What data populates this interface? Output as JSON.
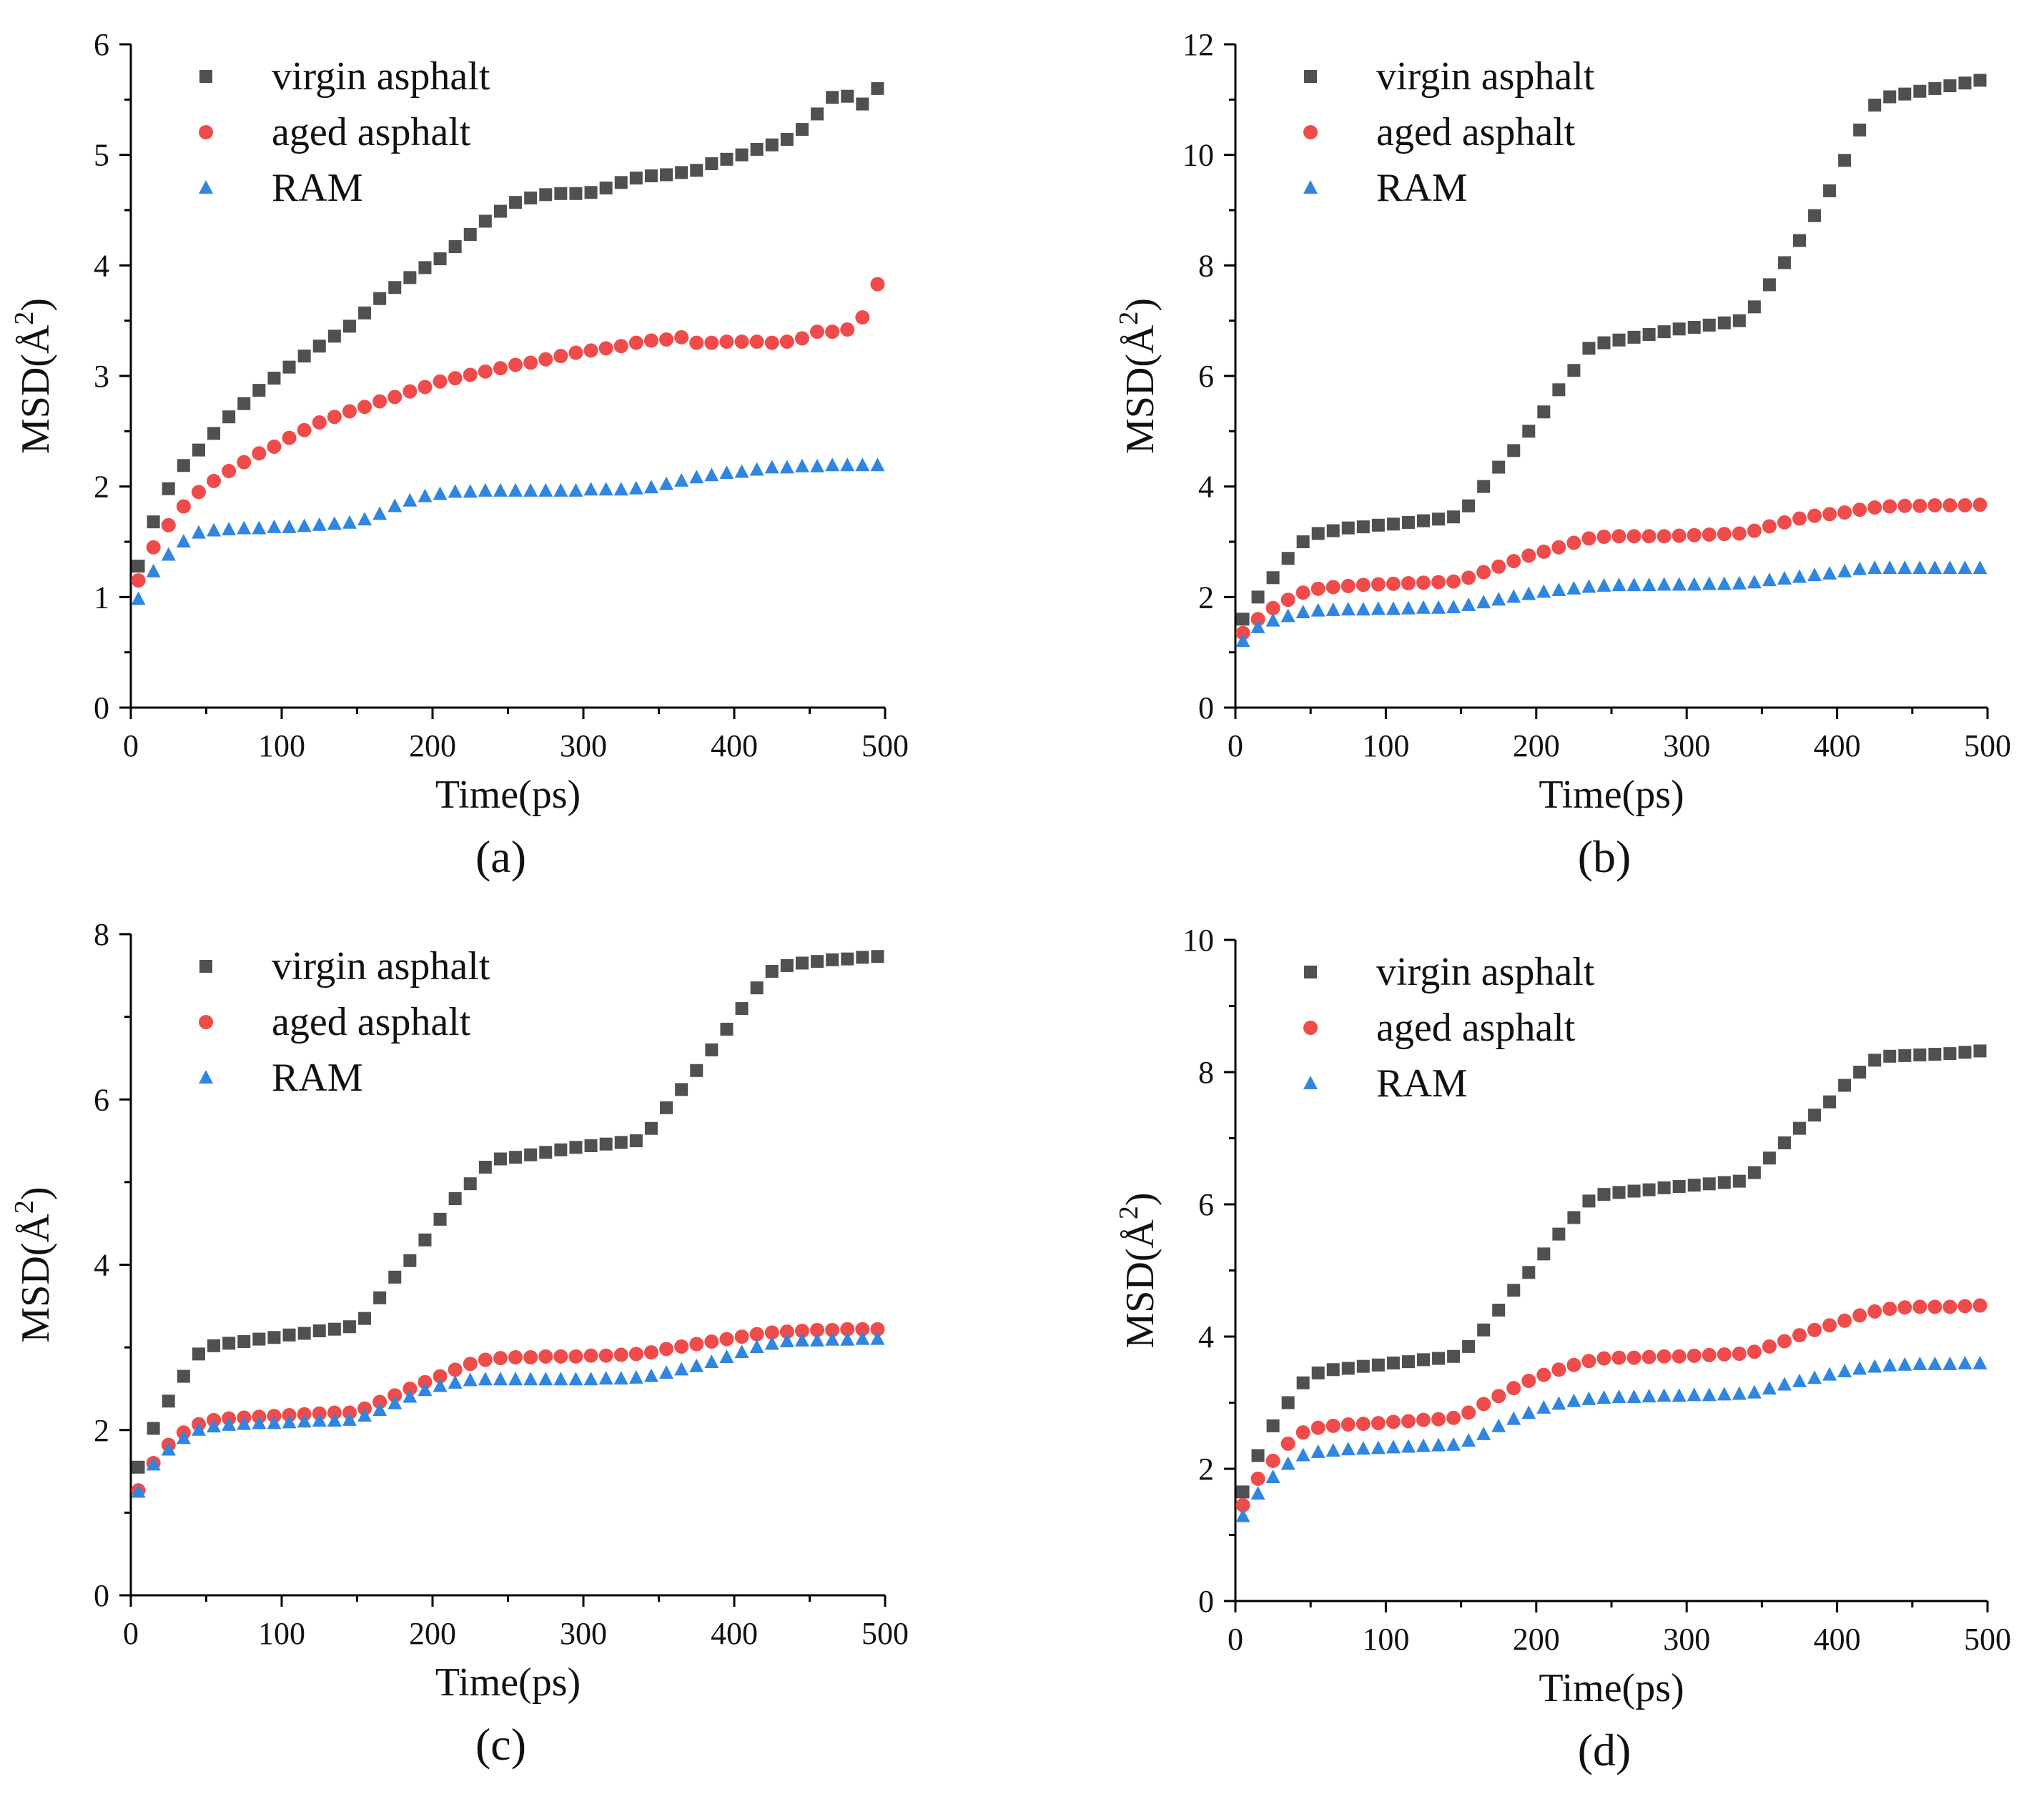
{
  "figure": {
    "series_legend": [
      "virgin asphalt",
      "aged asphalt",
      "RAM"
    ],
    "series_colors": {
      "virgin": "#505050",
      "aged": "#ef4b4b",
      "ram": "#2f86e0"
    }
  },
  "chart_data": [
    {
      "type": "scatter",
      "panel_label": "(a)",
      "xlabel": "Time(ps)",
      "ylabel": "MSD(Å²)",
      "ylabel_base": "MSD(Å",
      "ylabel_sup": "2",
      "ylabel_close": ")",
      "xlim": [
        0,
        500
      ],
      "ylim": [
        0,
        6
      ],
      "xticks": [
        0,
        100,
        200,
        300,
        400,
        500
      ],
      "yticks": [
        0,
        1,
        2,
        3,
        4,
        5,
        6
      ],
      "x": [
        5,
        15,
        25,
        35,
        45,
        55,
        65,
        75,
        85,
        95,
        105,
        115,
        125,
        135,
        145,
        155,
        165,
        175,
        185,
        195,
        205,
        215,
        225,
        235,
        245,
        255,
        265,
        275,
        285,
        295,
        305,
        315,
        325,
        335,
        345,
        355,
        365,
        375,
        385,
        395,
        405,
        415,
        425,
        435,
        445,
        455,
        465,
        475,
        485,
        495
      ],
      "series": [
        {
          "name": "virgin asphalt",
          "marker": "square",
          "values": [
            1.28,
            1.68,
            1.98,
            2.19,
            2.33,
            2.48,
            2.63,
            2.75,
            2.87,
            2.98,
            3.08,
            3.18,
            3.27,
            3.36,
            3.45,
            3.57,
            3.7,
            3.8,
            3.89,
            3.98,
            4.06,
            4.17,
            4.28,
            4.4,
            4.49,
            4.57,
            4.61,
            4.64,
            4.65,
            4.65,
            4.66,
            4.7,
            4.75,
            4.79,
            4.81,
            4.82,
            4.84,
            4.86,
            4.92,
            4.96,
            5.0,
            5.05,
            5.09,
            5.14,
            5.23,
            5.37,
            5.52,
            5.53,
            5.46,
            5.6
          ]
        },
        {
          "name": "aged asphalt",
          "marker": "circle",
          "values": [
            1.15,
            1.45,
            1.65,
            1.82,
            1.95,
            2.05,
            2.14,
            2.22,
            2.3,
            2.36,
            2.44,
            2.51,
            2.58,
            2.63,
            2.68,
            2.72,
            2.77,
            2.81,
            2.86,
            2.9,
            2.95,
            2.98,
            3.01,
            3.04,
            3.07,
            3.1,
            3.12,
            3.15,
            3.18,
            3.21,
            3.23,
            3.25,
            3.27,
            3.3,
            3.32,
            3.33,
            3.35,
            3.3,
            3.3,
            3.31,
            3.31,
            3.31,
            3.3,
            3.31,
            3.34,
            3.4,
            3.4,
            3.42,
            3.53,
            3.83
          ]
        },
        {
          "name": "RAM",
          "marker": "triangle",
          "values": [
            0.98,
            1.23,
            1.38,
            1.5,
            1.58,
            1.6,
            1.61,
            1.62,
            1.62,
            1.63,
            1.63,
            1.64,
            1.65,
            1.66,
            1.67,
            1.7,
            1.75,
            1.82,
            1.87,
            1.91,
            1.93,
            1.95,
            1.95,
            1.96,
            1.96,
            1.96,
            1.96,
            1.96,
            1.96,
            1.96,
            1.97,
            1.97,
            1.97,
            1.98,
            1.99,
            2.02,
            2.05,
            2.08,
            2.1,
            2.12,
            2.13,
            2.15,
            2.17,
            2.17,
            2.18,
            2.18,
            2.19,
            2.19,
            2.19,
            2.19
          ]
        }
      ]
    },
    {
      "type": "scatter",
      "panel_label": "(b)",
      "xlabel": "Time(ps)",
      "ylabel": "MSD(Å²)",
      "ylabel_base": "MSD(Å",
      "ylabel_sup": "2",
      "ylabel_close": ")",
      "xlim": [
        0,
        500
      ],
      "ylim": [
        0,
        12
      ],
      "xticks": [
        0,
        100,
        200,
        300,
        400,
        500
      ],
      "yticks": [
        0,
        2,
        4,
        6,
        8,
        10,
        12
      ],
      "x": [
        5,
        15,
        25,
        35,
        45,
        55,
        65,
        75,
        85,
        95,
        105,
        115,
        125,
        135,
        145,
        155,
        165,
        175,
        185,
        195,
        205,
        215,
        225,
        235,
        245,
        255,
        265,
        275,
        285,
        295,
        305,
        315,
        325,
        335,
        345,
        355,
        365,
        375,
        385,
        395,
        405,
        415,
        425,
        435,
        445,
        455,
        465,
        475,
        485,
        495
      ],
      "series": [
        {
          "name": "virgin asphalt",
          "marker": "square",
          "values": [
            1.6,
            2.0,
            2.35,
            2.7,
            3.0,
            3.15,
            3.2,
            3.25,
            3.27,
            3.3,
            3.32,
            3.35,
            3.38,
            3.41,
            3.45,
            3.65,
            4.0,
            4.35,
            4.65,
            5.0,
            5.35,
            5.75,
            6.1,
            6.5,
            6.6,
            6.65,
            6.7,
            6.75,
            6.8,
            6.85,
            6.88,
            6.92,
            6.96,
            7.0,
            7.25,
            7.65,
            8.05,
            8.45,
            8.9,
            9.35,
            9.9,
            10.45,
            10.9,
            11.05,
            11.1,
            11.15,
            11.2,
            11.25,
            11.3,
            11.35
          ]
        },
        {
          "name": "aged asphalt",
          "marker": "circle",
          "values": [
            1.35,
            1.6,
            1.8,
            1.95,
            2.08,
            2.15,
            2.18,
            2.2,
            2.22,
            2.23,
            2.24,
            2.25,
            2.26,
            2.27,
            2.28,
            2.35,
            2.45,
            2.55,
            2.65,
            2.75,
            2.82,
            2.9,
            2.98,
            3.06,
            3.09,
            3.1,
            3.1,
            3.1,
            3.1,
            3.11,
            3.12,
            3.13,
            3.14,
            3.15,
            3.2,
            3.28,
            3.35,
            3.42,
            3.47,
            3.5,
            3.53,
            3.58,
            3.62,
            3.64,
            3.65,
            3.65,
            3.66,
            3.66,
            3.66,
            3.67
          ]
        },
        {
          "name": "RAM",
          "marker": "triangle",
          "values": [
            1.2,
            1.45,
            1.57,
            1.65,
            1.72,
            1.75,
            1.76,
            1.77,
            1.77,
            1.78,
            1.78,
            1.79,
            1.8,
            1.8,
            1.81,
            1.85,
            1.9,
            1.95,
            2.0,
            2.05,
            2.09,
            2.12,
            2.15,
            2.18,
            2.2,
            2.21,
            2.21,
            2.21,
            2.22,
            2.22,
            2.22,
            2.23,
            2.23,
            2.24,
            2.26,
            2.3,
            2.33,
            2.36,
            2.39,
            2.42,
            2.46,
            2.5,
            2.52,
            2.52,
            2.52,
            2.52,
            2.52,
            2.52,
            2.52,
            2.52
          ]
        }
      ]
    },
    {
      "type": "scatter",
      "panel_label": "(c)",
      "xlabel": "Time(ps)",
      "ylabel": "MSD(Å²)",
      "ylabel_base": "MSD(Å",
      "ylabel_sup": "2",
      "ylabel_close": ")",
      "xlim": [
        0,
        500
      ],
      "ylim": [
        0,
        8
      ],
      "xticks": [
        0,
        100,
        200,
        300,
        400,
        500
      ],
      "yticks": [
        0,
        2,
        4,
        6,
        8
      ],
      "x": [
        5,
        15,
        25,
        35,
        45,
        55,
        65,
        75,
        85,
        95,
        105,
        115,
        125,
        135,
        145,
        155,
        165,
        175,
        185,
        195,
        205,
        215,
        225,
        235,
        245,
        255,
        265,
        275,
        285,
        295,
        305,
        315,
        325,
        335,
        345,
        355,
        365,
        375,
        385,
        395,
        405,
        415,
        425,
        435,
        445,
        455,
        465,
        475,
        485,
        495
      ],
      "series": [
        {
          "name": "virgin asphalt",
          "marker": "square",
          "values": [
            1.55,
            2.02,
            2.35,
            2.65,
            2.92,
            3.02,
            3.05,
            3.07,
            3.1,
            3.12,
            3.15,
            3.17,
            3.2,
            3.22,
            3.25,
            3.35,
            3.6,
            3.85,
            4.05,
            4.3,
            4.55,
            4.8,
            4.98,
            5.18,
            5.28,
            5.3,
            5.33,
            5.36,
            5.39,
            5.42,
            5.44,
            5.46,
            5.48,
            5.5,
            5.65,
            5.9,
            6.12,
            6.35,
            6.6,
            6.85,
            7.1,
            7.35,
            7.55,
            7.62,
            7.65,
            7.67,
            7.69,
            7.7,
            7.72,
            7.73
          ]
        },
        {
          "name": "aged asphalt",
          "marker": "circle",
          "values": [
            1.27,
            1.6,
            1.82,
            1.97,
            2.07,
            2.12,
            2.14,
            2.15,
            2.16,
            2.17,
            2.18,
            2.19,
            2.2,
            2.21,
            2.21,
            2.26,
            2.34,
            2.42,
            2.5,
            2.58,
            2.65,
            2.73,
            2.8,
            2.85,
            2.87,
            2.88,
            2.88,
            2.89,
            2.89,
            2.89,
            2.9,
            2.9,
            2.91,
            2.92,
            2.94,
            2.98,
            3.01,
            3.04,
            3.07,
            3.1,
            3.13,
            3.16,
            3.18,
            3.19,
            3.2,
            3.21,
            3.21,
            3.22,
            3.22,
            3.22
          ]
        },
        {
          "name": "RAM",
          "marker": "triangle",
          "values": [
            1.25,
            1.58,
            1.76,
            1.9,
            2.0,
            2.04,
            2.06,
            2.07,
            2.08,
            2.08,
            2.09,
            2.1,
            2.11,
            2.11,
            2.12,
            2.17,
            2.24,
            2.32,
            2.4,
            2.48,
            2.53,
            2.57,
            2.6,
            2.61,
            2.61,
            2.61,
            2.61,
            2.61,
            2.61,
            2.61,
            2.61,
            2.62,
            2.62,
            2.63,
            2.65,
            2.69,
            2.73,
            2.77,
            2.82,
            2.88,
            2.94,
            3.0,
            3.04,
            3.07,
            3.08,
            3.08,
            3.09,
            3.09,
            3.1,
            3.1
          ]
        }
      ]
    },
    {
      "type": "scatter",
      "panel_label": "(d)",
      "xlabel": "Time(ps)",
      "ylabel": "MSD(Å²)",
      "ylabel_base": "MSD(Å",
      "ylabel_sup": "2",
      "ylabel_close": ")",
      "xlim": [
        0,
        500
      ],
      "ylim": [
        0,
        10
      ],
      "xticks": [
        0,
        100,
        200,
        300,
        400,
        500
      ],
      "yticks": [
        0,
        2,
        4,
        6,
        8,
        10
      ],
      "x": [
        5,
        15,
        25,
        35,
        45,
        55,
        65,
        75,
        85,
        95,
        105,
        115,
        125,
        135,
        145,
        155,
        165,
        175,
        185,
        195,
        205,
        215,
        225,
        235,
        245,
        255,
        265,
        275,
        285,
        295,
        305,
        315,
        325,
        335,
        345,
        355,
        365,
        375,
        385,
        395,
        405,
        415,
        425,
        435,
        445,
        455,
        465,
        475,
        485,
        495
      ],
      "series": [
        {
          "name": "virgin asphalt",
          "marker": "square",
          "values": [
            1.65,
            2.2,
            2.65,
            3.0,
            3.3,
            3.45,
            3.5,
            3.52,
            3.55,
            3.57,
            3.6,
            3.62,
            3.65,
            3.67,
            3.7,
            3.85,
            4.1,
            4.4,
            4.7,
            4.97,
            5.25,
            5.55,
            5.8,
            6.05,
            6.15,
            6.18,
            6.2,
            6.22,
            6.25,
            6.27,
            6.29,
            6.31,
            6.33,
            6.35,
            6.48,
            6.7,
            6.93,
            7.15,
            7.35,
            7.55,
            7.8,
            8.0,
            8.18,
            8.24,
            8.25,
            8.26,
            8.27,
            8.28,
            8.3,
            8.32
          ]
        },
        {
          "name": "aged asphalt",
          "marker": "circle",
          "values": [
            1.45,
            1.85,
            2.12,
            2.38,
            2.55,
            2.62,
            2.65,
            2.67,
            2.68,
            2.69,
            2.71,
            2.72,
            2.74,
            2.75,
            2.77,
            2.85,
            2.98,
            3.1,
            3.22,
            3.33,
            3.42,
            3.5,
            3.57,
            3.63,
            3.67,
            3.68,
            3.68,
            3.69,
            3.7,
            3.7,
            3.71,
            3.72,
            3.73,
            3.74,
            3.77,
            3.85,
            3.93,
            4.02,
            4.1,
            4.17,
            4.24,
            4.32,
            4.38,
            4.42,
            4.44,
            4.45,
            4.45,
            4.45,
            4.46,
            4.47
          ]
        },
        {
          "name": "RAM",
          "marker": "triangle",
          "values": [
            1.28,
            1.62,
            1.87,
            2.07,
            2.2,
            2.25,
            2.27,
            2.29,
            2.3,
            2.31,
            2.32,
            2.33,
            2.34,
            2.35,
            2.36,
            2.42,
            2.52,
            2.64,
            2.75,
            2.84,
            2.92,
            2.98,
            3.02,
            3.05,
            3.07,
            3.08,
            3.08,
            3.09,
            3.1,
            3.1,
            3.11,
            3.11,
            3.12,
            3.13,
            3.15,
            3.21,
            3.27,
            3.32,
            3.37,
            3.42,
            3.47,
            3.51,
            3.54,
            3.56,
            3.57,
            3.58,
            3.58,
            3.58,
            3.59,
            3.59
          ]
        }
      ]
    }
  ]
}
